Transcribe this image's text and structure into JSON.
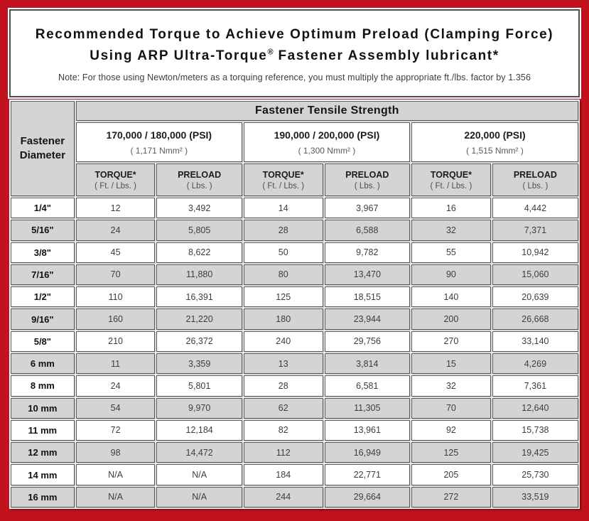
{
  "colors": {
    "frame_red": "#c2121e",
    "cell_gray": "#d4d4d4",
    "border_dark": "#58595b",
    "title_text": "#121212",
    "value_text": "#3d3d3d"
  },
  "header": {
    "title_line1": "Recommended Torque to Achieve Optimum Preload (Clamping Force)",
    "title_line2_prefix": "Using ARP Ultra-Torque",
    "registered_mark": "®",
    "title_line2_suffix": " Fastener Assembly lubricant*",
    "note": "Note: For those using Newton/meters as a torquing reference, you must multiply the appropriate ft./lbs. factor by 1.356"
  },
  "table": {
    "tensile_strength_header": "Fastener Tensile Strength",
    "diameter_header_line1": "Fastener",
    "diameter_header_line2": "Diameter",
    "column_groups": [
      {
        "psi": "170,000 / 180,000 (PSI)",
        "nmm": "( 1,171 Nmm² )"
      },
      {
        "psi": "190,000 / 200,000 (PSI)",
        "nmm": "( 1,300 Nmm² )"
      },
      {
        "psi": "220,000 (PSI)",
        "nmm": "( 1,515 Nmm² )"
      }
    ],
    "sub_headers": {
      "torque_label": "TORQUE*",
      "torque_unit": "( Ft. / Lbs. )",
      "preload_label": "PRELOAD",
      "preload_unit": "( Lbs. )"
    },
    "rows": [
      {
        "diameter": "1/4\"",
        "values": [
          "12",
          "3,492",
          "14",
          "3,967",
          "16",
          "4,442"
        ]
      },
      {
        "diameter": "5/16\"",
        "values": [
          "24",
          "5,805",
          "28",
          "6,588",
          "32",
          "7,371"
        ]
      },
      {
        "diameter": "3/8\"",
        "values": [
          "45",
          "8,622",
          "50",
          "9,782",
          "55",
          "10,942"
        ]
      },
      {
        "diameter": "7/16\"",
        "values": [
          "70",
          "11,880",
          "80",
          "13,470",
          "90",
          "15,060"
        ]
      },
      {
        "diameter": "1/2\"",
        "values": [
          "110",
          "16,391",
          "125",
          "18,515",
          "140",
          "20,639"
        ]
      },
      {
        "diameter": "9/16\"",
        "values": [
          "160",
          "21,220",
          "180",
          "23,944",
          "200",
          "26,668"
        ]
      },
      {
        "diameter": "5/8\"",
        "values": [
          "210",
          "26,372",
          "240",
          "29,756",
          "270",
          "33,140"
        ]
      },
      {
        "diameter": "6 mm",
        "values": [
          "11",
          "3,359",
          "13",
          "3,814",
          "15",
          "4,269"
        ]
      },
      {
        "diameter": "8 mm",
        "values": [
          "24",
          "5,801",
          "28",
          "6,581",
          "32",
          "7,361"
        ]
      },
      {
        "diameter": "10 mm",
        "values": [
          "54",
          "9,970",
          "62",
          "11,305",
          "70",
          "12,640"
        ]
      },
      {
        "diameter": "11 mm",
        "values": [
          "72",
          "12,184",
          "82",
          "13,961",
          "92",
          "15,738"
        ]
      },
      {
        "diameter": "12 mm",
        "values": [
          "98",
          "14,472",
          "112",
          "16,949",
          "125",
          "19,425"
        ]
      },
      {
        "diameter": "14 mm",
        "values": [
          "N/A",
          "N/A",
          "184",
          "22,771",
          "205",
          "25,730"
        ]
      },
      {
        "diameter": "16 mm",
        "values": [
          "N/A",
          "N/A",
          "244",
          "29,664",
          "272",
          "33,519"
        ]
      }
    ]
  },
  "chart_data": {
    "type": "table",
    "title": "Recommended Torque to Achieve Optimum Preload (Clamping Force) Using ARP Ultra-Torque® Fastener Assembly lubricant*",
    "columns": [
      "Fastener Diameter",
      "TORQUE* ( Ft. / Lbs. ) @ 170,000 / 180,000 (PSI)",
      "PRELOAD ( Lbs. ) @ 170,000 / 180,000 (PSI)",
      "TORQUE* ( Ft. / Lbs. ) @ 190,000 / 200,000 (PSI)",
      "PRELOAD ( Lbs. ) @ 190,000 / 200,000 (PSI)",
      "TORQUE* ( Ft. / Lbs. ) @ 220,000 (PSI)",
      "PRELOAD ( Lbs. ) @ 220,000 (PSI)"
    ],
    "rows": [
      [
        "1/4\"",
        "12",
        "3,492",
        "14",
        "3,967",
        "16",
        "4,442"
      ],
      [
        "5/16\"",
        "24",
        "5,805",
        "28",
        "6,588",
        "32",
        "7,371"
      ],
      [
        "3/8\"",
        "45",
        "8,622",
        "50",
        "9,782",
        "55",
        "10,942"
      ],
      [
        "7/16\"",
        "70",
        "11,880",
        "80",
        "13,470",
        "90",
        "15,060"
      ],
      [
        "1/2\"",
        "110",
        "16,391",
        "125",
        "18,515",
        "140",
        "20,639"
      ],
      [
        "9/16\"",
        "160",
        "21,220",
        "180",
        "23,944",
        "200",
        "26,668"
      ],
      [
        "5/8\"",
        "210",
        "26,372",
        "240",
        "29,756",
        "270",
        "33,140"
      ],
      [
        "6 mm",
        "11",
        "3,359",
        "13",
        "3,814",
        "15",
        "4,269"
      ],
      [
        "8 mm",
        "24",
        "5,801",
        "28",
        "6,581",
        "32",
        "7,361"
      ],
      [
        "10 mm",
        "54",
        "9,970",
        "62",
        "11,305",
        "70",
        "12,640"
      ],
      [
        "11 mm",
        "72",
        "12,184",
        "82",
        "13,961",
        "92",
        "15,738"
      ],
      [
        "12 mm",
        "98",
        "14,472",
        "112",
        "16,949",
        "125",
        "19,425"
      ],
      [
        "14 mm",
        "N/A",
        "N/A",
        "184",
        "22,771",
        "205",
        "25,730"
      ],
      [
        "16 mm",
        "N/A",
        "N/A",
        "244",
        "29,664",
        "272",
        "33,519"
      ]
    ]
  }
}
